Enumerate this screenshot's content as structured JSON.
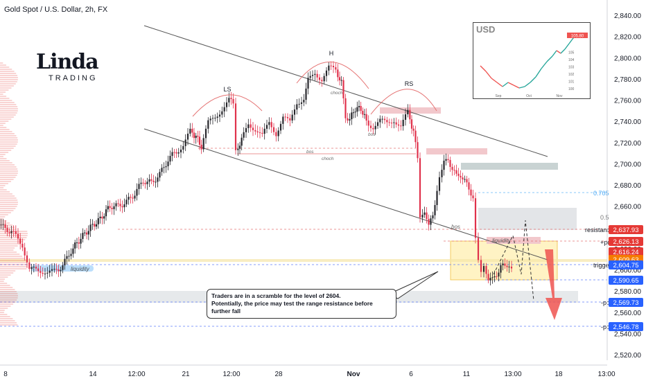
{
  "header": {
    "title": "Gold Spot / U.S. Dollar, 2h, FX"
  },
  "logo": {
    "main": "Linda",
    "sub": "TRADING"
  },
  "inset": {
    "label": "USD",
    "x_ticks": [
      "Sep",
      "Oct",
      "Nov"
    ],
    "y_ticks": [
      "100",
      "101",
      "102",
      "103",
      "104",
      "105"
    ],
    "last_value": "105.80"
  },
  "callout": {
    "line1": "Traders are in a scramble for the level of 2604.",
    "line2": "Potentially, the price may test the range resistance before further fall"
  },
  "chart_data": {
    "type": "candlestick",
    "title": "Gold Spot / U.S. Dollar, 2h, FX",
    "ylim": [
      2510,
      2850
    ],
    "y_ticks": [
      2520,
      2540,
      2560,
      2580,
      2600,
      2620,
      2640,
      2660,
      2680,
      2700,
      2720,
      2740,
      2760,
      2780,
      2800,
      2820,
      2840
    ],
    "x_ticks": [
      "8",
      "14",
      "12:00",
      "21",
      "12:00",
      "28",
      "Nov",
      "6",
      "11",
      "13:00",
      "18",
      "13:00"
    ],
    "price_path": [
      [
        0,
        2642
      ],
      [
        18,
        2636
      ],
      [
        34,
        2624
      ],
      [
        44,
        2600
      ],
      [
        60,
        2600
      ],
      [
        70,
        2597
      ],
      [
        80,
        2598
      ],
      [
        92,
        2604
      ],
      [
        104,
        2618
      ],
      [
        118,
        2630
      ],
      [
        132,
        2640
      ],
      [
        146,
        2648
      ],
      [
        160,
        2660
      ],
      [
        172,
        2660
      ],
      [
        184,
        2664
      ],
      [
        196,
        2672
      ],
      [
        208,
        2684
      ],
      [
        220,
        2682
      ],
      [
        232,
        2690
      ],
      [
        244,
        2704
      ],
      [
        256,
        2712
      ],
      [
        266,
        2717
      ],
      [
        276,
        2730
      ],
      [
        284,
        2726
      ],
      [
        292,
        2716
      ],
      [
        302,
        2738
      ],
      [
        312,
        2744
      ],
      [
        322,
        2752
      ],
      [
        332,
        2760
      ],
      [
        338,
        2756
      ],
      [
        342,
        2713
      ],
      [
        350,
        2722
      ],
      [
        360,
        2738
      ],
      [
        370,
        2733
      ],
      [
        380,
        2726
      ],
      [
        390,
        2738
      ],
      [
        400,
        2729
      ],
      [
        410,
        2744
      ],
      [
        420,
        2738
      ],
      [
        430,
        2758
      ],
      [
        440,
        2762
      ],
      [
        446,
        2778
      ],
      [
        456,
        2786
      ],
      [
        466,
        2780
      ],
      [
        476,
        2790
      ],
      [
        486,
        2788
      ],
      [
        494,
        2776
      ],
      [
        500,
        2745
      ],
      [
        506,
        2742
      ],
      [
        514,
        2752
      ],
      [
        522,
        2752
      ],
      [
        530,
        2740
      ],
      [
        540,
        2735
      ],
      [
        550,
        2740
      ],
      [
        560,
        2738
      ],
      [
        570,
        2742
      ],
      [
        580,
        2735
      ],
      [
        590,
        2748
      ],
      [
        598,
        2730
      ],
      [
        604,
        2705
      ],
      [
        608,
        2650
      ],
      [
        614,
        2657
      ],
      [
        620,
        2640
      ],
      [
        626,
        2652
      ],
      [
        632,
        2676
      ],
      [
        636,
        2688
      ],
      [
        642,
        2700
      ],
      [
        648,
        2705
      ],
      [
        654,
        2695
      ],
      [
        660,
        2688
      ],
      [
        666,
        2690
      ],
      [
        672,
        2684
      ],
      [
        678,
        2675
      ],
      [
        684,
        2670
      ],
      [
        688,
        2632
      ],
      [
        692,
        2612
      ],
      [
        696,
        2601
      ],
      [
        700,
        2606
      ],
      [
        706,
        2592
      ],
      [
        712,
        2590
      ],
      [
        718,
        2596
      ],
      [
        724,
        2604
      ],
      [
        730,
        2602
      ],
      [
        736,
        2606
      ],
      [
        740,
        2604
      ]
    ],
    "price_labels": [
      {
        "value": "2,637.93",
        "color": "#e53935"
      },
      {
        "value": "2,626.13",
        "color": "#e53935"
      },
      {
        "value": "2,616.24",
        "color": "#e53935"
      },
      {
        "value": "2,609.63",
        "color": "#f57c00"
      },
      {
        "value": "2,604.75",
        "color": "#2962ff"
      },
      {
        "value": "2,590.65",
        "color": "#2962ff"
      },
      {
        "value": "2,569.73",
        "color": "#2962ff"
      },
      {
        "value": "2,546.78",
        "color": "#2962ff"
      }
    ],
    "annotations": {
      "patterns": [
        "LS",
        "H",
        "RS"
      ],
      "structure": [
        "choch",
        "bos",
        "choch",
        "bos",
        "bos"
      ],
      "zones": [
        "liquidity",
        "liquidity"
      ],
      "levels": [
        "resistance",
        "+poi",
        "trigger",
        "-poi",
        "-poi"
      ],
      "fib": [
        "0.705",
        "0.5"
      ]
    }
  }
}
